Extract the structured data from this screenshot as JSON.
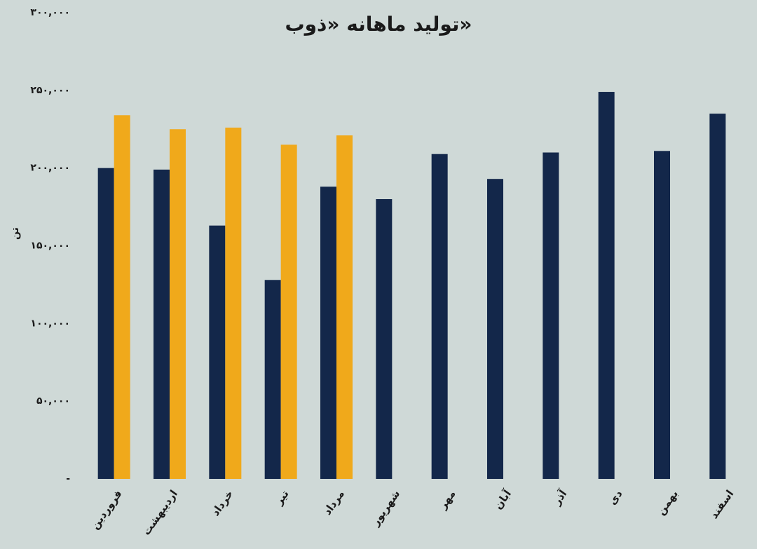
{
  "chart_data": {
    "type": "bar",
    "title": "تولید ماهانه «ذوب»",
    "y_label": "تن",
    "categories": [
      "فروردین",
      "اردیبهشت",
      "خرداد",
      "تیر",
      "مرداد",
      "شهریور",
      "مهر",
      "آبان",
      "آذر",
      "دی",
      "بهمن",
      "اسفند"
    ],
    "series": [
      {
        "color": "#13274a",
        "values": [
          200000,
          199000,
          163000,
          128000,
          188000,
          180000,
          209000,
          193000,
          210000,
          249000,
          211000,
          235000
        ]
      },
      {
        "color": "#f0a91b",
        "values": [
          234000,
          225000,
          226000,
          215000,
          221000,
          null,
          null,
          null,
          null,
          null,
          null,
          null
        ]
      }
    ],
    "ylim": [
      0,
      300000
    ],
    "yticks": [
      {
        "value": 0,
        "label": "-"
      },
      {
        "value": 50000,
        "label": "۵۰,۰۰۰"
      },
      {
        "value": 100000,
        "label": "۱۰۰,۰۰۰"
      },
      {
        "value": 150000,
        "label": "۱۵۰,۰۰۰"
      },
      {
        "value": 200000,
        "label": "۲۰۰,۰۰۰"
      },
      {
        "value": 250000,
        "label": "۲۵۰,۰۰۰"
      },
      {
        "value": 300000,
        "label": "۳۰۰,۰۰۰"
      }
    ],
    "grid": false
  }
}
